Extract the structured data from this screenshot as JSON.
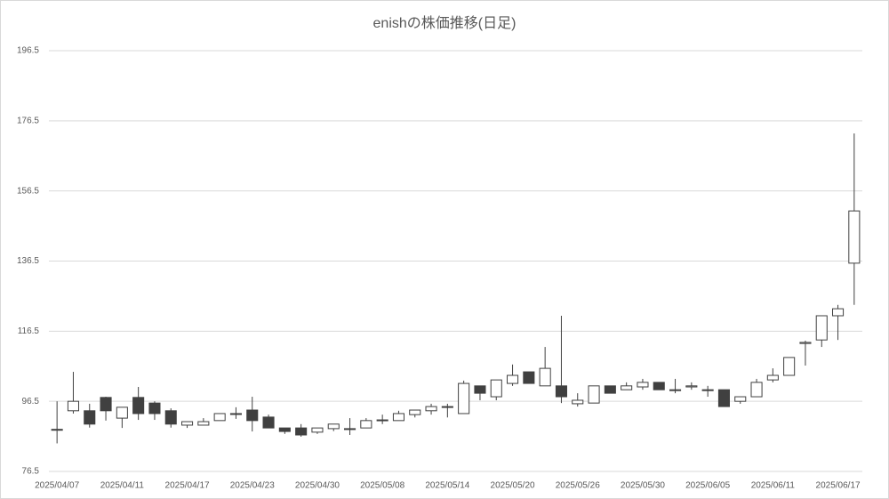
{
  "chart_data": {
    "type": "candlestick",
    "title": "enishの株価推移(日足)",
    "categories": [
      "2025/04/07",
      null,
      null,
      null,
      "2025/04/11",
      null,
      null,
      null,
      "2025/04/17",
      null,
      null,
      null,
      "2025/04/23",
      null,
      null,
      null,
      "2025/04/30",
      null,
      null,
      null,
      "2025/05/08",
      null,
      null,
      null,
      "2025/05/14",
      null,
      null,
      null,
      "2025/05/20",
      null,
      null,
      null,
      "2025/05/26",
      null,
      null,
      null,
      "2025/05/30",
      null,
      null,
      null,
      "2025/06/05",
      null,
      null,
      null,
      "2025/06/11",
      null,
      null,
      null,
      "2025/06/17",
      null
    ],
    "open": [
      88.5,
      93.8,
      93.8,
      97.6,
      91.7,
      97.6,
      96,
      93.8,
      89.7,
      89.7,
      91,
      93,
      94,
      92,
      88.9,
      88.9,
      87.7,
      88.7,
      88.7,
      88.9,
      91,
      91,
      92.7,
      93.8,
      94.8,
      93,
      100.9,
      97.8,
      101.6,
      104.9,
      100.9,
      100.9,
      95.8,
      96,
      100.9,
      99.8,
      100.6,
      101.9,
      99.8,
      100.6,
      99.8,
      99.8,
      96.5,
      97.8,
      102.6,
      103.9,
      113,
      114,
      120.9,
      135.9
    ],
    "high": [
      96.5,
      104.9,
      95.8,
      97.8,
      94.8,
      100.6,
      96.5,
      94.5,
      90.7,
      91.7,
      93,
      94.8,
      97.8,
      92.7,
      88.9,
      90,
      88.9,
      90,
      91.7,
      91.7,
      92.7,
      93.8,
      94,
      95.8,
      95.8,
      102.4,
      100.9,
      102.6,
      107,
      104.9,
      112,
      120.9,
      98.8,
      100.9,
      100.9,
      101.9,
      102.9,
      101.9,
      102.9,
      101.9,
      100.9,
      99.8,
      97.8,
      102.9,
      105.9,
      109,
      113.8,
      120.9,
      124,
      172.9
    ],
    "low": [
      84.5,
      93,
      89,
      91,
      88.9,
      91.2,
      91.2,
      89,
      88.9,
      89.7,
      91,
      91.5,
      87.9,
      88.9,
      87.2,
      86.4,
      87.2,
      88,
      86.9,
      88.9,
      90,
      91,
      91.9,
      92.7,
      91.9,
      93,
      96.8,
      96.8,
      100.9,
      101.6,
      100.9,
      96,
      95,
      96,
      98.8,
      99.8,
      99.8,
      99.8,
      98.8,
      99.8,
      97.8,
      95,
      95.8,
      97.8,
      101.9,
      103.9,
      106.7,
      112,
      114,
      124
    ],
    "close": [
      88.5,
      96.5,
      90,
      93.8,
      94.8,
      93,
      93,
      90,
      90.7,
      90.7,
      93,
      93,
      91,
      88.9,
      87.9,
      86.9,
      88.9,
      90,
      88.7,
      91,
      91.2,
      93,
      94,
      95,
      95,
      101.6,
      98.8,
      102.6,
      103.9,
      101.6,
      105.9,
      97.8,
      96.8,
      100.9,
      98.8,
      100.9,
      101.9,
      99.8,
      99.8,
      100.9,
      99.8,
      95,
      97.8,
      101.9,
      103.9,
      109,
      113.3,
      120.9,
      122.9,
      150.8
    ],
    "up_color": "#ffffff",
    "down_color": "#404040",
    "line_color": "#404040",
    "ylim": [
      76.5,
      196.5
    ],
    "yticks": [
      76.5,
      96.5,
      116.5,
      136.5,
      156.5,
      176.5,
      196.5
    ],
    "grid": true
  }
}
